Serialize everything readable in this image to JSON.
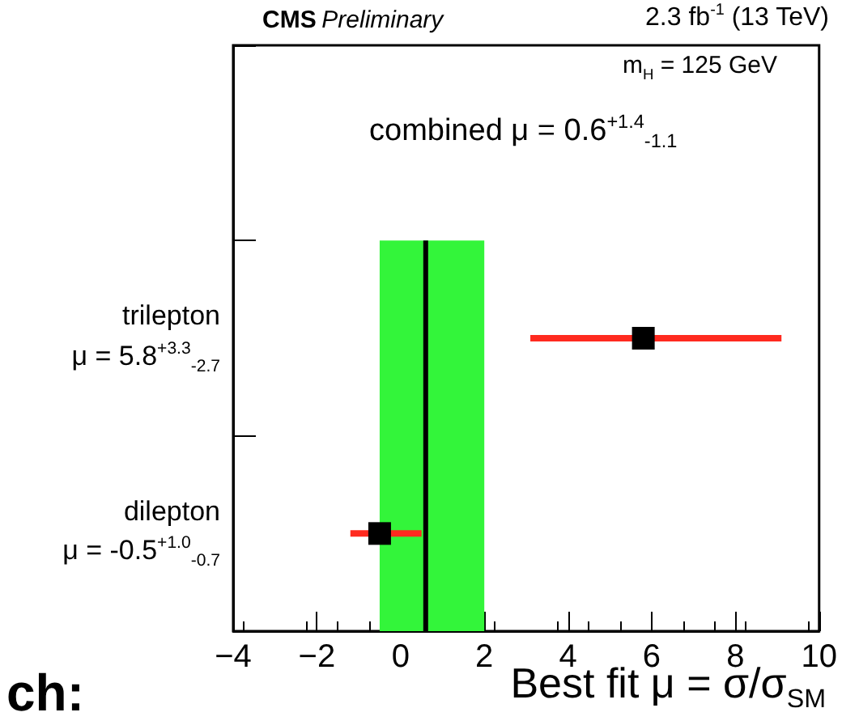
{
  "chart_data": {
    "type": "scatter",
    "orientation": "horizontal",
    "title": "CMS Preliminary",
    "subtitle": "2.3 fb$^{-1}$ (13 TeV)",
    "xlabel": "Best fit μ = σ/σ$_{SM}$",
    "categories": [
      null,
      "trilepton\nμ = 5.8$^{+3.3}$$_{-2.7}$",
      "dilepton\nμ = -0.5$^{+1.0}$$_{-0.7}$"
    ],
    "series": [
      {
        "color": "#000000",
        "values": [
          null,
          5.8,
          -0.5
        ],
        "errors": [
          null,
          [
            3.1,
            9.1
          ],
          [
            -1.2,
            0.5
          ]
        ]
      }
    ],
    "marker": "square",
    "grid": false,
    "xlim": [
      -4,
      10
    ],
    "xticks": [
      -4,
      -2,
      0,
      2,
      4,
      6,
      8,
      10
    ],
    "ref_lines": [
      {
        "axis": "x",
        "value": 0.6,
        "color": "#000000"
      }
    ],
    "bands": [
      {
        "axis": "x",
        "from": -0.5,
        "to": 2.0,
        "color": "#33f53a"
      }
    ],
    "annotations": [
      "m$_{H}$ = 125 GeV",
      "combined μ = 0.6$^{+1.4}$$_{-1.1}$",
      "ch:"
    ]
  }
}
